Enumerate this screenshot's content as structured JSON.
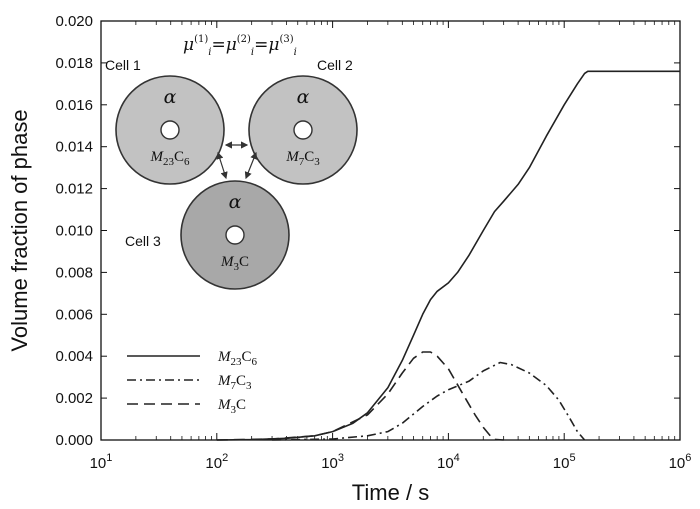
{
  "chart_data": {
    "type": "line",
    "xlabel": "Time / s",
    "ylabel": "Volume fraction of phase",
    "x_scale": "log",
    "xlim": [
      10,
      1000000
    ],
    "ylim": [
      0,
      0.02
    ],
    "x_ticks": [
      10,
      100,
      1000,
      10000,
      100000,
      1000000
    ],
    "x_tick_labels": [
      {
        "base": "10",
        "exp": "1"
      },
      {
        "base": "10",
        "exp": "2"
      },
      {
        "base": "10",
        "exp": "3"
      },
      {
        "base": "10",
        "exp": "4"
      },
      {
        "base": "10",
        "exp": "5"
      },
      {
        "base": "10",
        "exp": "6"
      }
    ],
    "y_ticks": [
      0,
      0.002,
      0.004,
      0.006,
      0.008,
      0.01,
      0.012,
      0.014,
      0.016,
      0.018,
      0.02
    ],
    "y_tick_labels": [
      "0.000",
      "0.002",
      "0.004",
      "0.006",
      "0.008",
      "0.010",
      "0.012",
      "0.014",
      "0.016",
      "0.018",
      "0.020"
    ],
    "grid": false,
    "legend_placement": "lower-left",
    "series": [
      {
        "name": "M23C6",
        "label": {
          "base": "M",
          "sub1": "23",
          "mid": "C",
          "sub2": "6"
        },
        "style": "solid",
        "x": [
          100,
          200,
          400,
          700,
          1000,
          1500,
          2000,
          3000,
          4000,
          5000,
          6000,
          7000,
          8000,
          10000,
          12000,
          15000,
          20000,
          25000,
          30000,
          40000,
          50000,
          70000,
          100000,
          130000,
          150000,
          160000,
          200000,
          500000,
          1000000
        ],
        "y": [
          0,
          2e-05,
          8e-05,
          0.0002,
          0.0004,
          0.0008,
          0.0013,
          0.0025,
          0.0038,
          0.005,
          0.006,
          0.0067,
          0.0071,
          0.0075,
          0.008,
          0.0088,
          0.01,
          0.0109,
          0.0114,
          0.0122,
          0.013,
          0.0145,
          0.016,
          0.017,
          0.0175,
          0.0176,
          0.0176,
          0.0176,
          0.0176
        ]
      },
      {
        "name": "M7C3",
        "label": {
          "base": "M",
          "sub1": "7",
          "mid": "C",
          "sub2": "3"
        },
        "style": "dashdot",
        "x": [
          300,
          1000,
          2000,
          3000,
          4000,
          6000,
          8000,
          10000,
          15000,
          20000,
          28000,
          35000,
          50000,
          70000,
          90000,
          110000,
          130000,
          150000
        ],
        "y": [
          0,
          5e-05,
          0.0002,
          0.0004,
          0.0008,
          0.0016,
          0.0021,
          0.0024,
          0.0028,
          0.0033,
          0.0037,
          0.0036,
          0.0032,
          0.0026,
          0.0019,
          0.0011,
          0.0004,
          0
        ]
      },
      {
        "name": "M3C",
        "label": {
          "base": "M",
          "sub1": "3",
          "mid": "C",
          "sub2": ""
        },
        "style": "dashed",
        "x": [
          100,
          300,
          700,
          1000,
          2000,
          3000,
          4000,
          5000,
          6000,
          7000,
          8000,
          10000,
          13000,
          17000,
          20000,
          23000,
          25000,
          30000
        ],
        "y": [
          0,
          5e-05,
          0.0002,
          0.0004,
          0.0012,
          0.0022,
          0.0032,
          0.0039,
          0.0042,
          0.0042,
          0.004,
          0.0034,
          0.0023,
          0.0012,
          0.0006,
          0.0002,
          3e-05,
          0
        ]
      }
    ],
    "inset": {
      "equation": {
        "sym": "μ",
        "sub": "i",
        "sup1": "(1)",
        "sup2": "(2)",
        "sup3": "(3)"
      },
      "cells": [
        {
          "label": "Cell 1",
          "matrix": "α",
          "phase": {
            "base": "M",
            "sub1": "23",
            "mid": "C",
            "sub2": "6"
          }
        },
        {
          "label": "Cell 2",
          "matrix": "α",
          "phase": {
            "base": "M",
            "sub1": "7",
            "mid": "C",
            "sub2": "3"
          }
        },
        {
          "label": "Cell 3",
          "matrix": "α",
          "phase": {
            "base": "M",
            "sub1": "3",
            "mid": "C",
            "sub2": ""
          }
        }
      ],
      "colors": {
        "cell1": "#c2c2c2",
        "cell2": "#c2c2c2",
        "cell3": "#a8a8a8"
      }
    }
  }
}
